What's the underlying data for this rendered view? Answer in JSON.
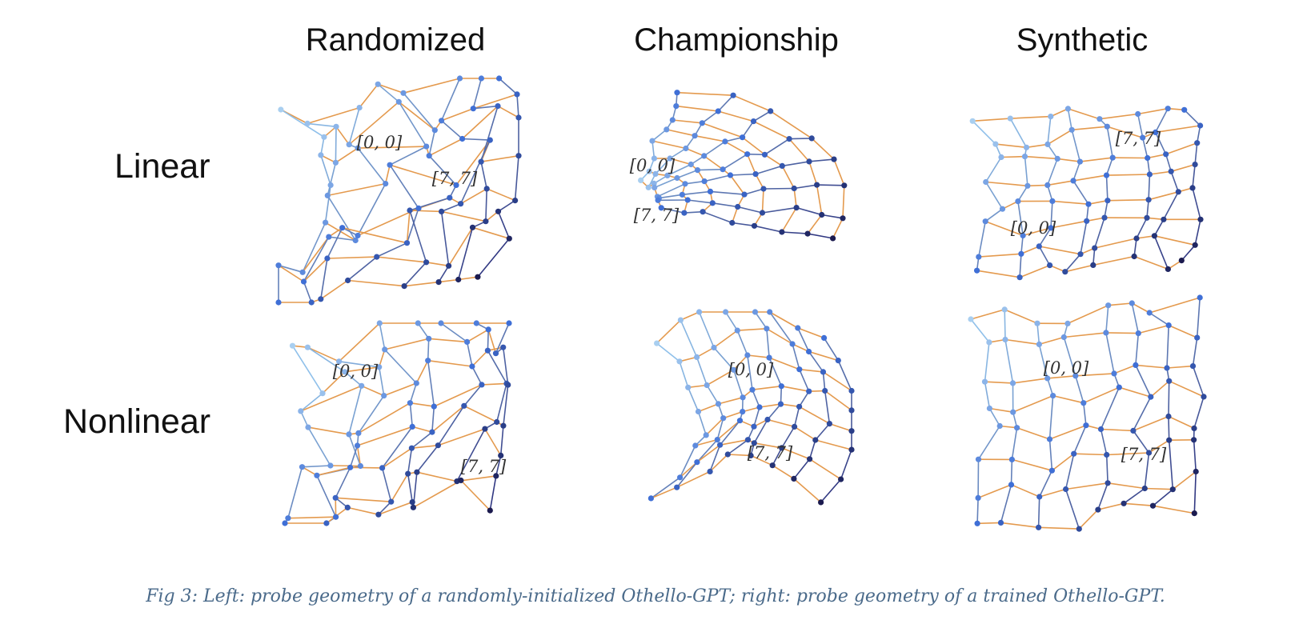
{
  "figure": {
    "column_titles": [
      "Randomized",
      "Championship",
      "Synthetic"
    ],
    "row_labels": [
      "Linear",
      "Nonlinear"
    ],
    "panels": [
      {
        "row": "Linear",
        "column": "Randomized",
        "label_a": "[0, 0]",
        "label_b": "[7, 7]",
        "shape": "blob"
      },
      {
        "row": "Linear",
        "column": "Championship",
        "label_a": "[0, 0]",
        "label_b": "[7, 7]",
        "shape": "fan"
      },
      {
        "row": "Linear",
        "column": "Synthetic",
        "label_a": "[0, 0]",
        "label_b": "[7, 7]",
        "shape": "grid"
      },
      {
        "row": "Nonlinear",
        "column": "Randomized",
        "label_a": "[0, 0]",
        "label_b": "[7, 7]",
        "shape": "blob"
      },
      {
        "row": "Nonlinear",
        "column": "Championship",
        "label_a": "[0, 0]",
        "label_b": "[7, 7]",
        "shape": "cross"
      },
      {
        "row": "Nonlinear",
        "column": "Synthetic",
        "label_a": "[0, 0]",
        "label_b": "[7, 7]",
        "shape": "grid"
      }
    ],
    "colors": {
      "node_light": "#a9cff0",
      "node_mid": "#3f6fd6",
      "node_dark": "#1b1a4e",
      "edge_orange": "#e49a4e",
      "edge_blue_light": "#8fc0ea",
      "edge_blue_dark": "#2a2e7a",
      "caption": "#4a6a8a"
    }
  },
  "caption": "Fig 3: Left: probe geometry of a randomly-initialized Othello-GPT; right: probe geometry of a trained Othello-GPT."
}
